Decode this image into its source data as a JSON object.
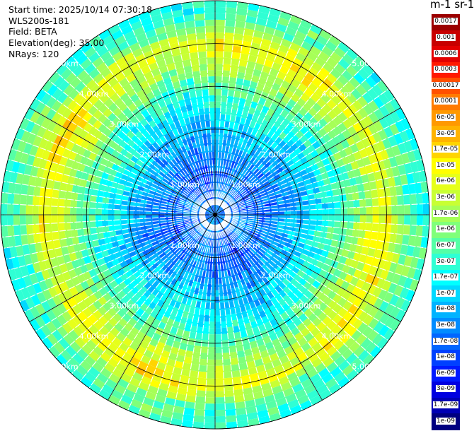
{
  "header": {
    "start_time": "Start time: 2025/10/14 07:30:18",
    "device": "WLS200s-181",
    "field": "Field: BETA",
    "elevation": "Elevation(deg): 35.00",
    "nrays": "NRays: 120"
  },
  "colorbar": {
    "unit_title": "m-1 sr-1",
    "labels": [
      "0.0017",
      "0.001",
      "0.0006",
      "0.0003",
      "0.00017",
      "0.0001",
      "6e-05",
      "3e-05",
      "1.7e-05",
      "1e-05",
      "6e-06",
      "3e-06",
      "1.7e-06",
      "1e-06",
      "6e-07",
      "3e-07",
      "1.7e-07",
      "1e-07",
      "6e-08",
      "3e-08",
      "1.7e-08",
      "1e-08",
      "6e-09",
      "3e-09",
      "1.7e-09",
      "1e-09"
    ],
    "colors": [
      "#9b0000",
      "#c80000",
      "#e30000",
      "#ff1a00",
      "#ff5000",
      "#ff7a00",
      "#ff9900",
      "#ffb300",
      "#ffd400",
      "#ffff00",
      "#e6ff1a",
      "#c8ff33",
      "#a6ff57",
      "#7fff7a",
      "#55ffa6",
      "#2fffd4",
      "#00ffff",
      "#00d9ff",
      "#00b3ff",
      "#008cff",
      "#0066ff",
      "#0040ff",
      "#001aff",
      "#0000e0",
      "#0000b4",
      "#000080"
    ]
  },
  "chart_data": {
    "type": "heatmap",
    "projection": "polar-ppi",
    "field": "BETA",
    "elevation_deg": 35.0,
    "n_rays": 120,
    "range_unit": "km",
    "range_rings_km": [
      1.0,
      2.0,
      3.0,
      4.0,
      5.0
    ],
    "range_ring_labels": [
      "1.00km",
      "2.00km",
      "3.00km",
      "4.00km",
      "5.00km"
    ],
    "max_range_km": 5.0,
    "spokes_deg": [
      0,
      30,
      60,
      90,
      120,
      150,
      180,
      210,
      240,
      270,
      300,
      330
    ],
    "color_scale": "log",
    "colorbar_range": [
      1e-09,
      0.0017
    ],
    "radial_profile": [
      {
        "range_km": 0.5,
        "beta": 3e-08
      },
      {
        "range_km": 1.0,
        "beta": 2e-08
      },
      {
        "range_km": 1.5,
        "beta": 4e-08
      },
      {
        "range_km": 2.0,
        "beta": 8e-08
      },
      {
        "range_km": 2.5,
        "beta": 2e-07
      },
      {
        "range_km": 3.0,
        "beta": 5e-07
      },
      {
        "range_km": 3.5,
        "beta": 2e-06
      },
      {
        "range_km": 4.0,
        "beta": 8e-06
      },
      {
        "range_km": 4.5,
        "beta": 6e-07
      },
      {
        "range_km": 5.0,
        "beta": 3e-07
      }
    ]
  }
}
